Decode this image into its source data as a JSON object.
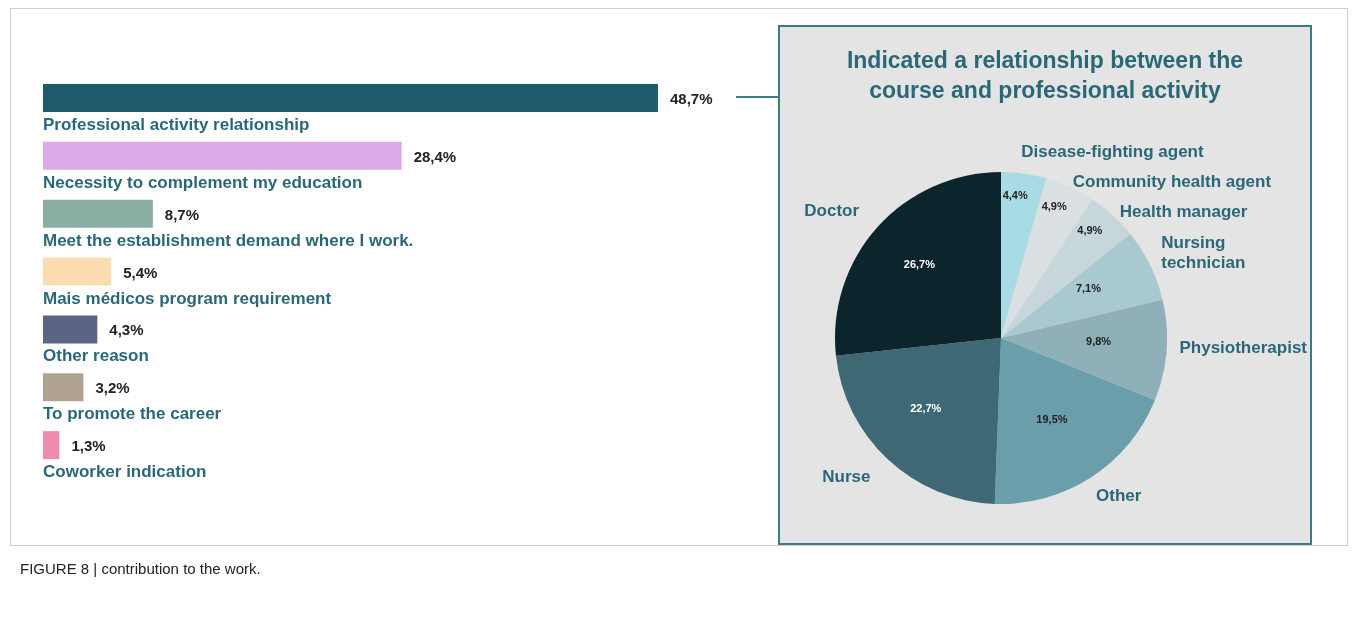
{
  "chart_data": [
    {
      "type": "bar",
      "orientation": "horizontal",
      "categories": [
        "Professional activity relationship",
        "Necessity to complement my education",
        "Meet the establishment demand where I work.",
        "Mais médicos program requirement",
        "Other reason",
        "To promote the career",
        "Coworker indication"
      ],
      "values": [
        48.7,
        28.4,
        8.7,
        5.4,
        4.3,
        3.2,
        1.3
      ],
      "colors": [
        "#1f5c6b",
        "#dba8e8",
        "#8aada4",
        "#fbdcb0",
        "#5b6482",
        "#b0a290",
        "#f08bad"
      ],
      "value_labels": [
        "48,7%",
        "28,4%",
        "8,7%",
        "5,4%",
        "4,3%",
        "3,2%",
        "1,3%"
      ],
      "legend": false,
      "annotations": [
        "FIGURE 8 | contribution to the work."
      ]
    },
    {
      "type": "pie",
      "title": "Indicated a relationship between the course and professional activity",
      "categories": [
        "Disease-fighting agent",
        "Community health agent",
        "Health manager",
        "Nursing technician",
        "Physiotherapist",
        "Other",
        "Nurse",
        "Doctor"
      ],
      "values": [
        4.4,
        4.9,
        4.9,
        7.1,
        9.8,
        19.5,
        22.7,
        26.7
      ],
      "colors": [
        "#a8dbe3",
        "#dadfe1",
        "#c7d6da",
        "#a9c9d1",
        "#8fb0b8",
        "#6a9eab",
        "#3e6873",
        "#0c252d"
      ],
      "value_labels": [
        "4,4%",
        "4,9%",
        "4,9%",
        "7,1%",
        "9,8%",
        "19,5%",
        "22,7%",
        "26,7%"
      ],
      "legend": false
    }
  ]
}
